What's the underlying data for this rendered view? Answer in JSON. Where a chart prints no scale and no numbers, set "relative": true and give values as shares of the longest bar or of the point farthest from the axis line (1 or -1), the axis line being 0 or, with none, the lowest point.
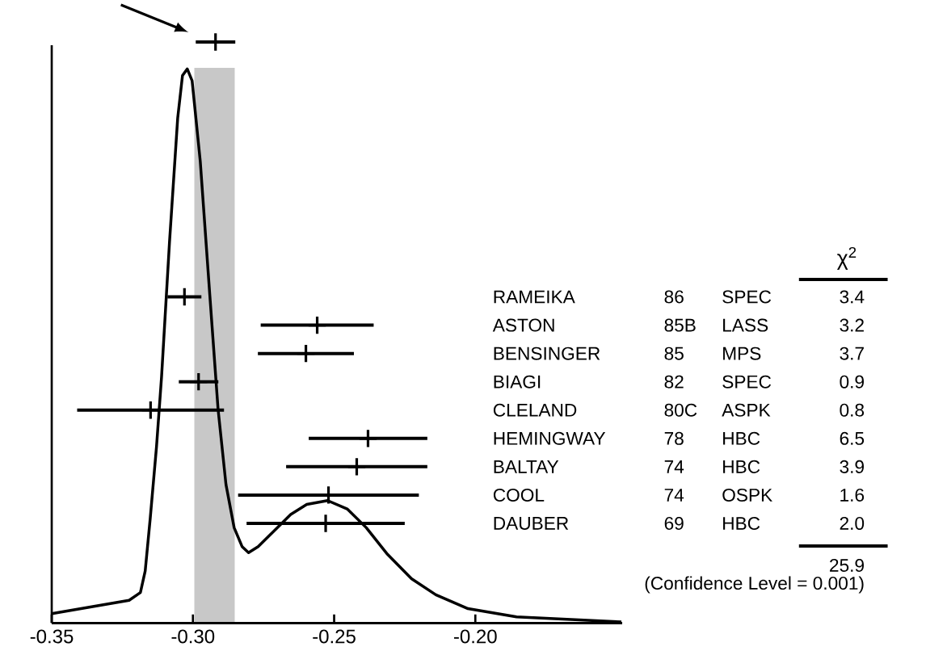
{
  "chart_data": [
    {
      "type": "line",
      "relative": true,
      "xlim": [
        -0.35,
        -0.148
      ],
      "x": [
        -0.35,
        -0.3226,
        -0.3186,
        -0.3169,
        -0.3151,
        -0.3129,
        -0.3111,
        -0.3083,
        -0.3054,
        -0.3037,
        -0.302,
        -0.3003,
        -0.2974,
        -0.294,
        -0.2911,
        -0.2883,
        -0.2854,
        -0.2826,
        -0.2803,
        -0.2769,
        -0.2711,
        -0.2654,
        -0.2597,
        -0.2523,
        -0.2454,
        -0.2386,
        -0.2311,
        -0.2226,
        -0.214,
        -0.2026,
        -0.1854,
        -0.1483
      ],
      "values": [
        0.017,
        0.041,
        0.055,
        0.094,
        0.19,
        0.318,
        0.445,
        0.687,
        0.911,
        0.988,
        1.0,
        0.979,
        0.833,
        0.59,
        0.386,
        0.25,
        0.172,
        0.138,
        0.127,
        0.138,
        0.167,
        0.196,
        0.214,
        0.221,
        0.206,
        0.172,
        0.124,
        0.08,
        0.051,
        0.026,
        0.011,
        0.002
      ]
    },
    {
      "type": "scatter",
      "orientation": "horizontal",
      "marker": "cross",
      "xlim": [
        -0.35,
        -0.148
      ],
      "xticks": [
        -0.35,
        {
          "value": -0.3,
          "label": "-0.30"
        },
        -0.25,
        {
          "value": -0.2,
          "label": "-0.20"
        }
      ],
      "categories": [
        null,
        null,
        null,
        null,
        null,
        null,
        null,
        null,
        null,
        "RAMEIKA",
        "ASTON",
        "BENSINGER",
        "BIAGI",
        "CLELAND",
        "HEMINGWAY",
        "BALTAY",
        "COOL",
        "DAUBER"
      ],
      "values": [
        -0.292,
        null,
        null,
        null,
        null,
        null,
        null,
        null,
        null,
        -0.303,
        -0.256,
        -0.26,
        -0.298,
        -0.315,
        -0.238,
        -0.242,
        -0.252,
        -0.253
      ],
      "errors": [
        0.007,
        null,
        null,
        null,
        null,
        null,
        null,
        null,
        null,
        0.006,
        0.02,
        0.017,
        0.007,
        0.026,
        0.021,
        0.025,
        0.032,
        0.028
      ],
      "bands": [
        {
          "axis": "x",
          "from": -0.2995,
          "to": -0.2852,
          "color": "#c8c8c8"
        }
      ],
      "annotations": [
        "χ$^{2}$",
        "86",
        "SPEC",
        "3.4",
        "85B",
        "LASS",
        "3.2",
        "85",
        "MPS",
        "3.7",
        "82",
        "SPEC",
        "0.9",
        "80C",
        "ASPK",
        "0.8",
        "78",
        "HBC",
        "6.5",
        "74",
        "HBC",
        "3.9",
        "74",
        "OSPK",
        "1.6",
        "69",
        "HBC",
        "2.0",
        "25.9",
        "(Confidence Level = 0.001)"
      ]
    }
  ]
}
